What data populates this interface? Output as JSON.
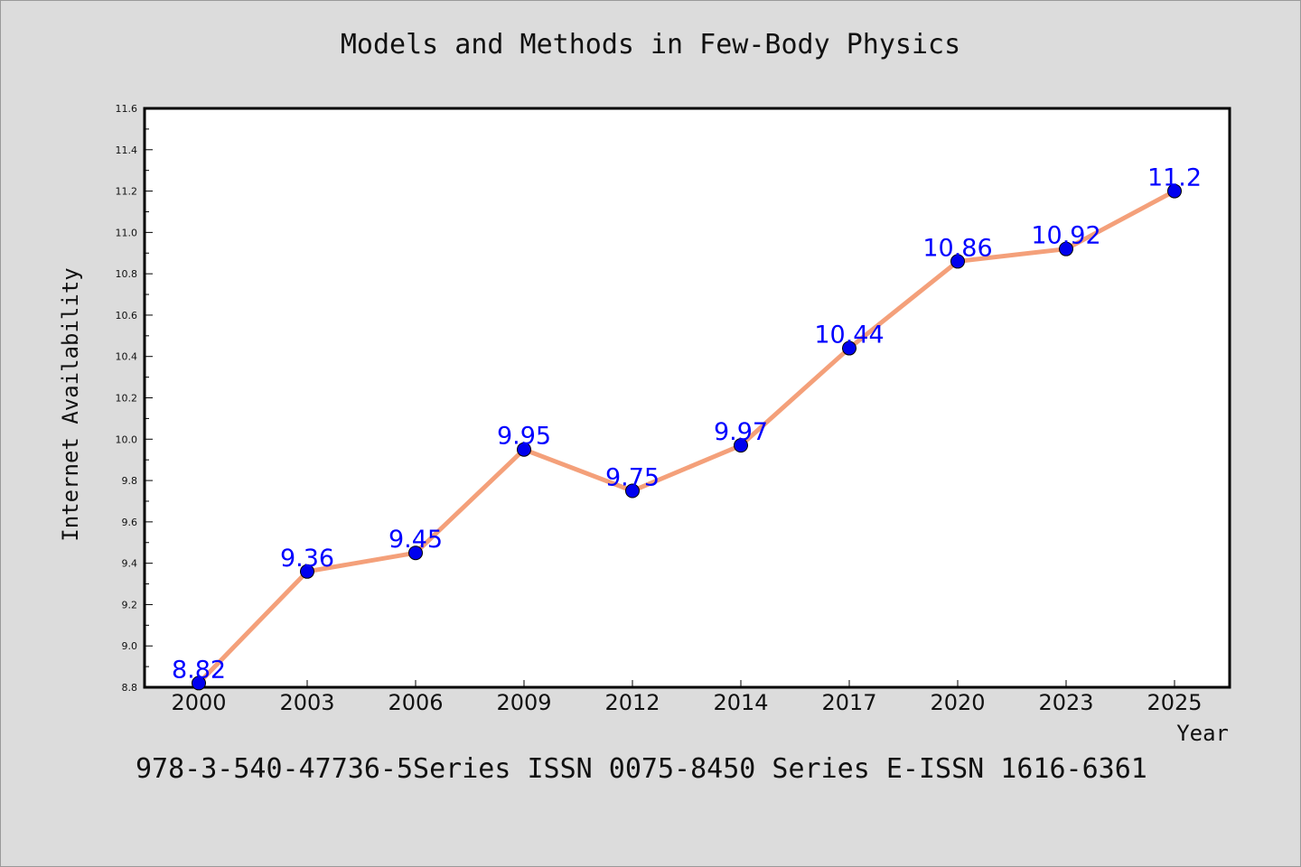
{
  "chart_data": {
    "type": "line",
    "title": "Models and Methods in Few-Body Physics",
    "xlabel": "Year",
    "ylabel": "Internet Availability",
    "categories": [
      "2000",
      "2003",
      "2006",
      "2009",
      "2012",
      "2014",
      "2017",
      "2020",
      "2023",
      "2025"
    ],
    "series": [
      {
        "values": [
          8.82,
          9.36,
          9.45,
          9.95,
          9.75,
          9.97,
          10.44,
          10.86,
          10.92,
          11.2
        ],
        "data_labels": [
          "8.82",
          "9.36",
          "9.45",
          "9.95",
          "9.75",
          "9.97",
          "10.44",
          "10.86",
          "10.92",
          "11.2"
        ],
        "line_color": "#f4a07a",
        "marker_color": "#0000ee",
        "label_color": "#0000ff"
      }
    ],
    "ylim": [
      8.8,
      11.6
    ],
    "y_ticks": [
      "8.8",
      "9.0",
      "9.2",
      "9.4",
      "9.6",
      "9.8",
      "10.0",
      "10.2",
      "10.4",
      "10.6",
      "10.8",
      "11.0",
      "11.2",
      "11.4",
      "11.6"
    ],
    "grid": false,
    "legend": "none"
  },
  "footer": {
    "text": "978-3-540-47736-5Series ISSN 0075-8450 Series E-ISSN 1616-6361"
  }
}
